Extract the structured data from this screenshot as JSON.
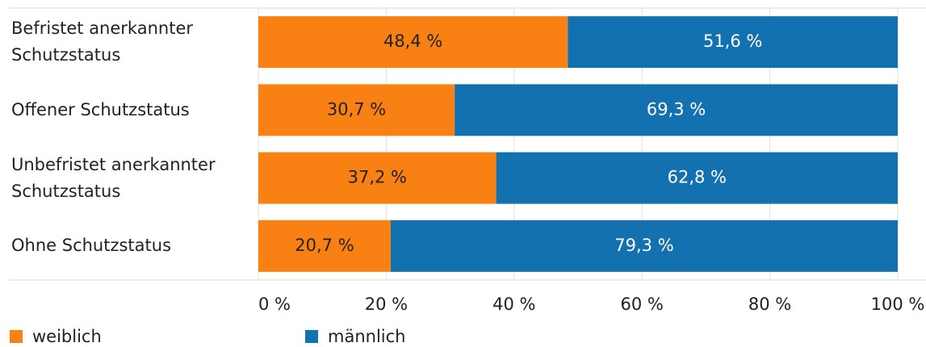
{
  "chart_data": {
    "type": "stacked_barh",
    "categories": [
      "Befristet anerkannter Schutzstatus",
      "Offener Schutzstatus",
      "Unbefristet anerkannter Schutzstatus",
      "Ohne Schutzstatus"
    ],
    "series": [
      {
        "name": "weiblich",
        "color": "#f98012",
        "values": [
          48.4,
          30.7,
          37.2,
          20.7
        ],
        "value_labels": [
          "48,4 %",
          "30,7 %",
          "37,2 %",
          "20,7 %"
        ]
      },
      {
        "name": "männlich",
        "color": "#1471b0",
        "values": [
          51.6,
          69.3,
          62.8,
          79.3
        ],
        "value_labels": [
          "51,6 %",
          "69,3 %",
          "62,8 %",
          "79,3 %"
        ]
      }
    ],
    "xlim": [
      0,
      100
    ],
    "xticks": [
      {
        "value": 0,
        "label": "0 %"
      },
      {
        "value": 20,
        "label": "20 %"
      },
      {
        "value": 40,
        "label": "40 %"
      },
      {
        "value": 60,
        "label": "60 %"
      },
      {
        "value": 80,
        "label": "80 %"
      },
      {
        "value": 100,
        "label": "100 %"
      }
    ],
    "grid": true,
    "legend": "bottom"
  }
}
